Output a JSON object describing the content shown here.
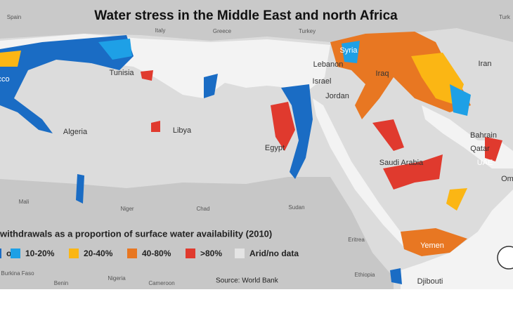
{
  "title": "Water stress in the Middle East and north Africa",
  "labels": [
    "Spain",
    "Italy",
    "Greece",
    "Turkey",
    "Turk",
    "Syria",
    "Lebanon",
    "Iraq",
    "Iran",
    "Tunisia",
    "Israel",
    "Jordan",
    "cco",
    "Algeria",
    "Libya",
    "Egypt",
    "Bahrain",
    "Qatar",
    "UAE",
    "Saudi Arabia",
    "Om",
    "Mali",
    "Niger",
    "Chad",
    "Sudan",
    "Eritrea",
    "Yemen",
    "Burkina Faso",
    "Nigeria",
    "Benin",
    "Cameroon",
    "Ethiopia",
    "Djibouti"
  ],
  "legend": {
    "title": "withdrawals as a proportion of surface water availability (2010)",
    "items": [
      {
        "label": "o",
        "color": "#1a6cc4"
      },
      {
        "label": "10-20%",
        "color": "#1ea0e6"
      },
      {
        "label": "20-40%",
        "color": "#fbb614"
      },
      {
        "label": "40-80%",
        "color": "#e87722"
      },
      {
        "label": ">80%",
        "color": "#e03a2e"
      },
      {
        "label": "Arid/no data",
        "color": "#e4e4e4"
      }
    ]
  },
  "source": "Source: World Bank"
}
